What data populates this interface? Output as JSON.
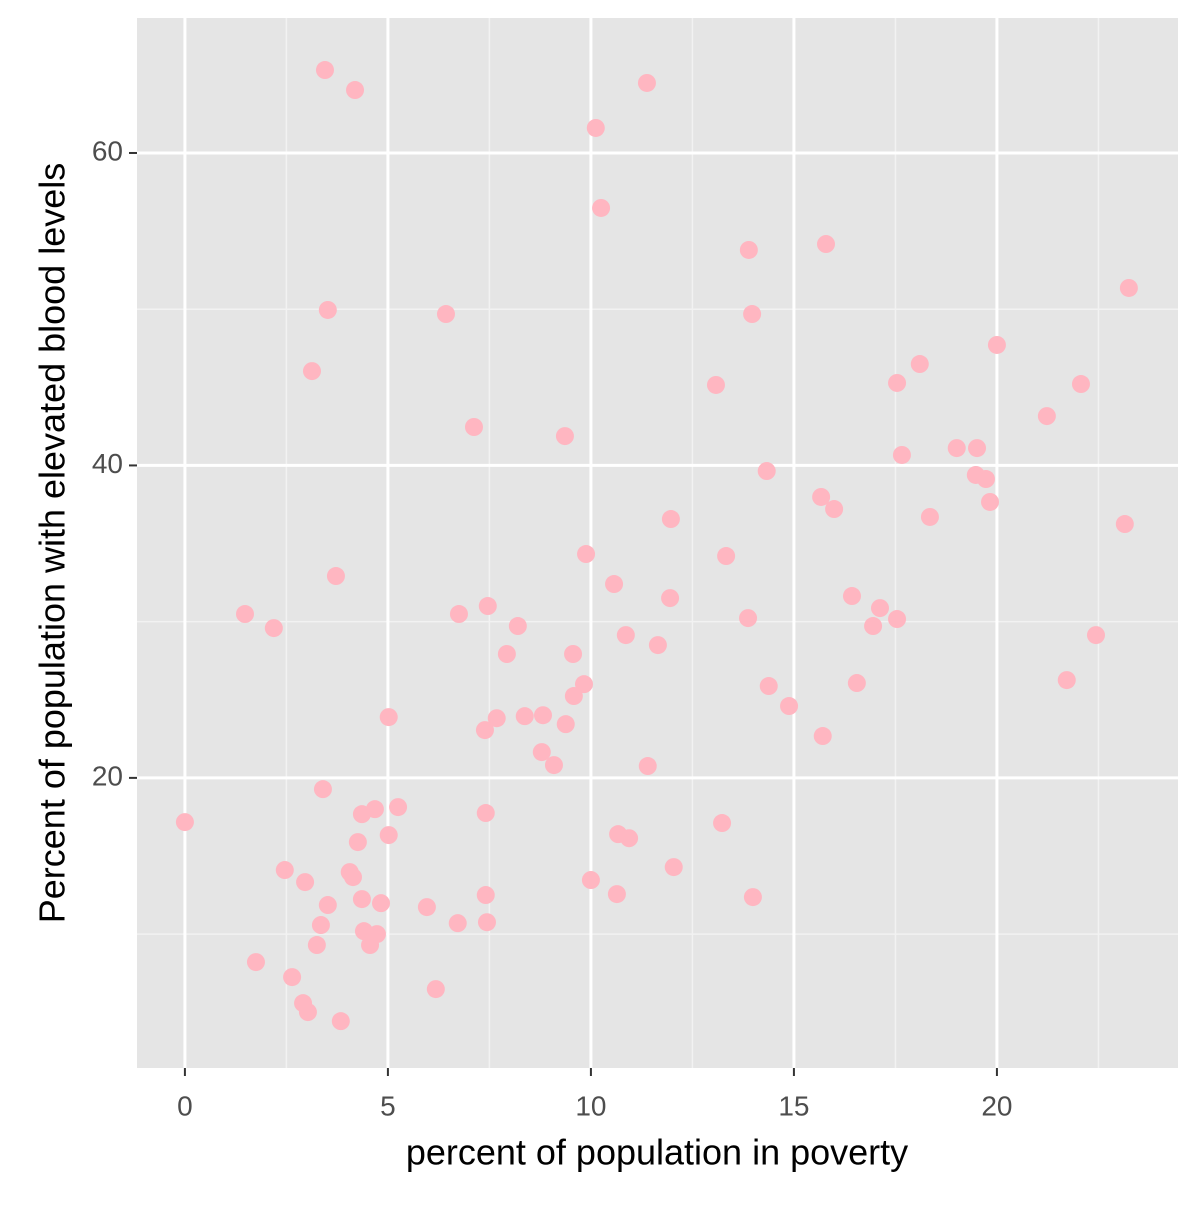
{
  "chart_data": {
    "type": "scatter",
    "x_label": "percent of population in poverty",
    "y_label": "Percent of population with elevated blood levels",
    "series": [
      {
        "color": "#ffb6c1",
        "x": [
          0,
          3.45,
          4.19,
          11.38,
          10.12,
          10.25,
          13.89,
          15.79,
          23.25,
          3.52,
          6.43,
          13.97,
          20.0,
          18.1,
          3.13,
          13.08,
          17.54,
          22.07,
          21.23,
          7.12,
          9.36,
          19.01,
          19.51,
          17.66,
          14.33,
          19.48,
          19.73,
          15.67,
          19.83,
          15.99,
          18.35,
          11.97,
          23.15,
          9.88,
          13.33,
          3.72,
          10.57,
          11.95,
          16.43,
          7.46,
          17.12,
          1.48,
          6.75,
          17.54,
          13.87,
          2.19,
          8.2,
          16.95,
          10.86,
          22.44,
          11.65,
          7.93,
          9.56,
          21.72,
          16.55,
          9.83,
          14.38,
          9.58,
          14.88,
          5.02,
          7.68,
          8.37,
          8.82,
          9.38,
          7.39,
          15.71,
          8.79,
          9.09,
          11.4,
          3.4,
          5.25,
          4.68,
          4.36,
          7.41,
          13.23,
          5.02,
          4.26,
          10.67,
          10.94,
          12.04,
          2.46,
          4.06,
          4.14,
          2.96,
          10.0,
          10.64,
          7.41,
          13.99,
          4.36,
          4.83,
          3.52,
          5.96,
          6.72,
          7.44,
          3.35,
          4.41,
          4.73,
          3.25,
          4.56,
          1.75,
          2.64,
          6.18,
          2.91,
          3.03,
          3.84
        ],
        "values": [
          17.17,
          65.31,
          64.03,
          64.48,
          61.6,
          56.48,
          53.79,
          54.17,
          51.36,
          49.95,
          49.69,
          49.69,
          47.71,
          46.49,
          46.04,
          45.15,
          45.28,
          45.21,
          43.16,
          42.46,
          41.88,
          41.11,
          41.11,
          40.67,
          39.64,
          39.39,
          39.13,
          37.98,
          37.66,
          37.21,
          36.7,
          36.57,
          36.25,
          34.33,
          34.2,
          32.92,
          32.41,
          31.51,
          31.64,
          31.0,
          30.87,
          30.49,
          30.49,
          30.17,
          30.23,
          29.59,
          29.72,
          29.72,
          29.14,
          29.14,
          28.5,
          27.93,
          27.93,
          26.26,
          26.07,
          26.0,
          25.88,
          25.24,
          24.6,
          23.89,
          23.82,
          23.95,
          24.01,
          23.44,
          23.06,
          22.68,
          21.65,
          20.82,
          20.76,
          19.28,
          18.13,
          18.0,
          17.68,
          17.75,
          17.11,
          16.34,
          15.89,
          16.4,
          16.14,
          14.29,
          14.1,
          13.97,
          13.65,
          13.33,
          13.46,
          12.56,
          12.5,
          12.37,
          12.24,
          11.98,
          11.86,
          11.73,
          10.7,
          10.76,
          10.58,
          10.19,
          10.0,
          9.3,
          9.3,
          8.21,
          7.25,
          6.48,
          5.58,
          5.01,
          4.43
        ]
      }
    ],
    "xlim": [
      -1.18,
      24.46
    ],
    "ylim": [
      1.43,
      68.64
    ],
    "xticks": [
      0,
      5,
      10,
      15,
      20
    ],
    "yticks": [
      20,
      40,
      60
    ],
    "minor_xticks": [
      2.5,
      7.5,
      12.5,
      17.5,
      22.5
    ],
    "minor_yticks": [
      10,
      30,
      50
    ],
    "grid": true
  }
}
